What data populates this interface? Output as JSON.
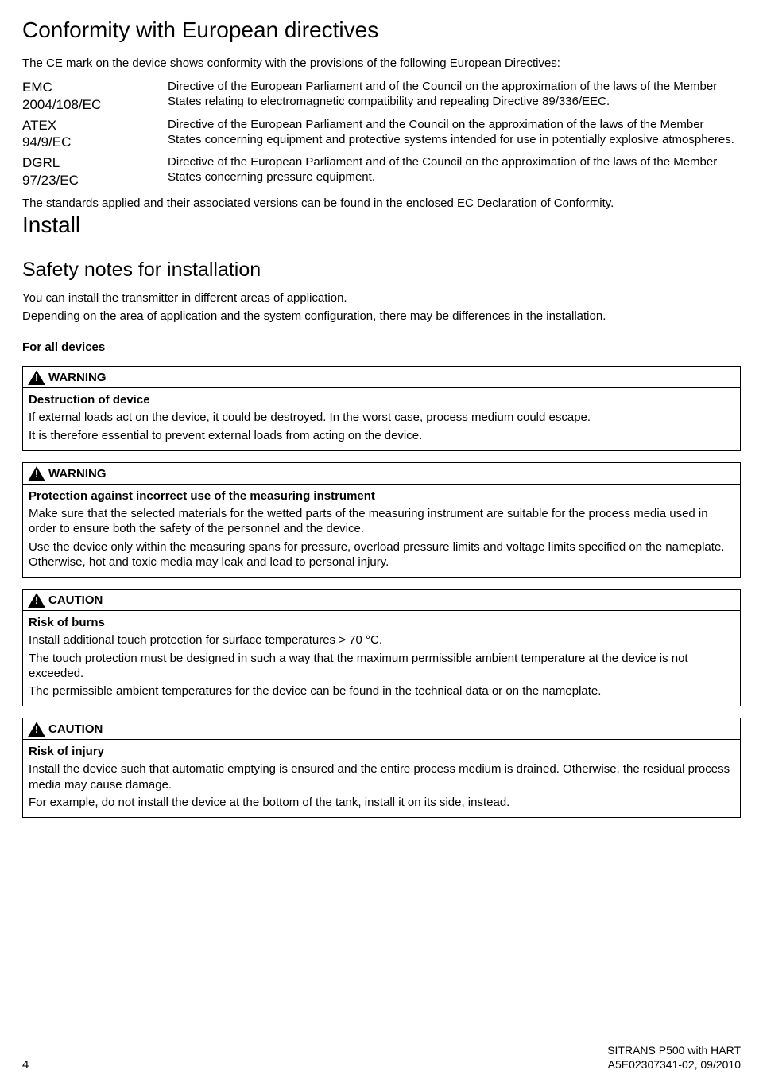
{
  "h1": "Conformity with European directives",
  "intro": "The CE mark on the device shows conformity with the provisions of the following European Directives:",
  "directives": [
    {
      "name": "EMC",
      "code": "2004/108/EC",
      "desc": "Directive of the European Parliament and of the Council on the approximation of the laws of the Member States relating to electromagnetic compatibility and repealing Directive 89/336/EEC."
    },
    {
      "name": "ATEX",
      "code": "94/9/EC",
      "desc": "Directive of the European Parliament and the Council on the approximation of the laws of the Member States concerning equipment and protective systems intended for use in potentially explosive atmospheres."
    },
    {
      "name": "DGRL",
      "code": "97/23/EC",
      "desc": "Directive of the European Parliament and of the Council on the approximation of the laws of the Member States concerning pressure equipment."
    }
  ],
  "after_table": "The standards applied and their associated versions can be found in the enclosed EC Declaration of Conformity.",
  "h_install": "Install",
  "h_safety": "Safety notes for installation",
  "safety_p1": "You can install the transmitter in different areas of application.",
  "safety_p2": "Depending on the area of application and the system configuration, there may be differences in the installation.",
  "for_all": "For all devices",
  "label_warning": "WARNING",
  "label_caution": "CAUTION",
  "box1": {
    "title": "Destruction of device",
    "p1": "If external loads act on the device, it could be destroyed. In the worst case, process medium could escape.",
    "p2": "It is therefore essential to prevent external loads from acting on the device."
  },
  "box2": {
    "title": "Protection against incorrect use of the measuring instrument",
    "p1": "Make sure that the selected materials for the wetted parts of the measuring instrument are suitable for the process media used in order to ensure both the safety of the personnel and the device.",
    "p2": "Use the device only within the measuring spans for pressure, overload pressure limits and voltage limits specified on the nameplate. Otherwise, hot and toxic media may leak and lead to personal injury."
  },
  "box3": {
    "title": "Risk of burns",
    "p1": "Install additional touch protection for surface temperatures > 70 °C.",
    "p2": "The touch protection must be designed in such a way that the maximum permissible ambient temperature at the device is not exceeded.",
    "p3": "The permissible ambient temperatures for the device can be found in the technical data or on the nameplate."
  },
  "box4": {
    "title": "Risk of injury",
    "p1": "Install the device such that automatic emptying is ensured and the entire process medium is drained. Otherwise, the residual process media may cause damage.",
    "p2": "For example, do not install the device at the bottom of the tank, install it on its side, instead."
  },
  "footer": {
    "page": "4",
    "product": "SITRANS P500 with HART",
    "docid": "A5E02307341-02, 09/2010"
  }
}
